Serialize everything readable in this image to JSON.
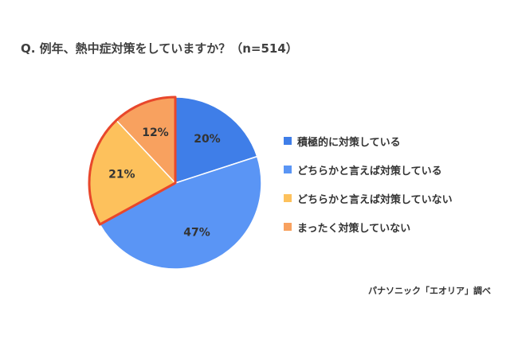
{
  "title": "Q. 例年、熱中症対策をしていますか？（n=514）",
  "source": "パナソニック「エオリア」調べ",
  "chart_data": {
    "type": "pie",
    "title": "Q. 例年、熱中症対策をしていますか？（n=514）",
    "categories": [
      "積極的に対策している",
      "どちらかと言えば対策している",
      "どちらかと言えば対策していない",
      "まったく対策していない"
    ],
    "values": [
      20,
      47,
      21,
      12
    ],
    "labels": [
      "20%",
      "47%",
      "21%",
      "12%"
    ],
    "colors": [
      "#3f7ee8",
      "#5a95f5",
      "#fdc15c",
      "#f8a15f"
    ],
    "highlight_color": "#e8472b",
    "highlighted_slices": [
      2,
      3
    ],
    "legend_position": "right"
  }
}
